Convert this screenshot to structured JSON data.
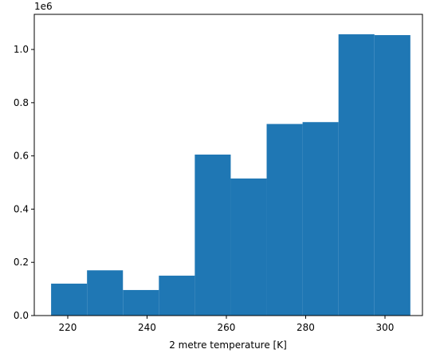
{
  "chart_data": {
    "type": "histogram",
    "xlabel": "2 metre temperature [K]",
    "y_offset_label": "1e6",
    "bins": [
      215.8,
      224.86,
      233.92,
      242.98,
      252.04,
      261.1,
      270.16,
      279.22,
      288.28,
      297.34,
      306.4
    ],
    "values": [
      0.12,
      0.17,
      0.096,
      0.15,
      0.605,
      0.515,
      0.72,
      0.727,
      1.057,
      1.054
    ],
    "color": "#1f77b4",
    "xlim": [
      211.56,
      309.45
    ],
    "xticks": [
      220,
      240,
      260,
      280,
      300
    ],
    "ylim": [
      0,
      1.132
    ],
    "yticks": [
      {
        "value": 0,
        "label": "0.0"
      },
      0.2,
      0.4,
      0.6,
      0.8,
      {
        "value": 1,
        "label": "1.0"
      }
    ]
  }
}
